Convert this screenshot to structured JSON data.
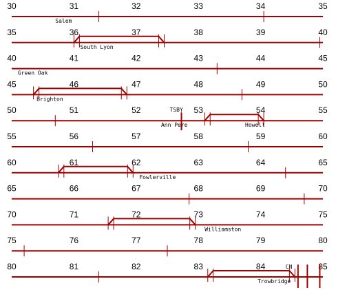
{
  "line_color": "#a00000",
  "rows": [
    {
      "start": 30,
      "labels": [
        "30",
        "31",
        "32",
        "33",
        "34",
        "35"
      ],
      "ticks": [
        31.4,
        34.05
      ],
      "stations": [
        {
          "name": "Salem",
          "mp": 30.7
        }
      ],
      "sidings": []
    },
    {
      "start": 35,
      "labels": [
        "35",
        "36",
        "37",
        "38",
        "39",
        "40"
      ],
      "ticks": [
        39.95
      ],
      "stations": [
        {
          "name": "South Lyon",
          "mp": 36.1
        }
      ],
      "sidings": [
        {
          "from": 36.0,
          "to": 37.45
        }
      ]
    },
    {
      "start": 40,
      "labels": [
        "40",
        "41",
        "42",
        "43",
        "44",
        "45"
      ],
      "ticks": [
        43.3
      ],
      "stations": [
        {
          "name": "Green Oak",
          "mp": 40.1
        }
      ],
      "sidings": []
    },
    {
      "start": 45,
      "labels": [
        "45",
        "46",
        "47",
        "48",
        "49",
        "50"
      ],
      "ticks": [
        48.7
      ],
      "stations": [
        {
          "name": "Brighton",
          "mp": 45.4
        }
      ],
      "sidings": [
        {
          "from": 45.35,
          "to": 46.85
        }
      ]
    },
    {
      "start": 50,
      "labels": [
        "50",
        "51",
        "52",
        "53",
        "54",
        "55"
      ],
      "ticks": [
        50.7
      ],
      "stations": [
        {
          "name": "Ann Pere",
          "mp": 52.4
        },
        {
          "name": "Howell",
          "mp": 53.75
        }
      ],
      "sidings": [
        {
          "from": 53.1,
          "to": 54.05
        }
      ]
    },
    {
      "start": 55,
      "labels": [
        "55",
        "56",
        "57",
        "58",
        "59",
        "60"
      ],
      "ticks": [
        56.3,
        58.8
      ],
      "stations": [],
      "sidings": []
    },
    {
      "start": 60,
      "labels": [
        "60",
        "61",
        "62",
        "63",
        "64",
        "65"
      ],
      "ticks": [
        64.4
      ],
      "stations": [
        {
          "name": "Fowlerville",
          "mp": 62.05
        }
      ],
      "sidings": [
        {
          "from": 60.75,
          "to": 61.95
        }
      ]
    },
    {
      "start": 65,
      "labels": [
        "65",
        "66",
        "67",
        "68",
        "69",
        "70"
      ],
      "ticks": [
        67.85,
        69.7
      ],
      "stations": [],
      "sidings": []
    },
    {
      "start": 70,
      "labels": [
        "70",
        "71",
        "72",
        "73",
        "74",
        "75"
      ],
      "ticks": [],
      "stations": [
        {
          "name": "Williamston",
          "mp": 73.1
        }
      ],
      "sidings": [
        {
          "from": 71.55,
          "to": 72.95
        }
      ]
    },
    {
      "start": 75,
      "labels": [
        "75",
        "76",
        "77",
        "78",
        "79",
        "80"
      ],
      "ticks": [
        75.2,
        77.5
      ],
      "stations": [],
      "sidings": []
    },
    {
      "start": 80,
      "labels": [
        "80",
        "81",
        "82",
        "83",
        "84",
        "85"
      ],
      "ticks": [
        81.4
      ],
      "stations": [
        {
          "name": "Trowbridge",
          "mp": 83.95
        },
        {
          "name": "CN",
          "mp": 84.4
        }
      ],
      "sidings": [
        {
          "from": 83.15,
          "to": 84.55
        }
      ]
    }
  ],
  "signals": [
    {
      "name": "TSBY",
      "mp": 52.55
    }
  ],
  "crossings": [
    {
      "mp": 84.6
    },
    {
      "mp": 84.75
    },
    {
      "mp": 84.95
    }
  ]
}
